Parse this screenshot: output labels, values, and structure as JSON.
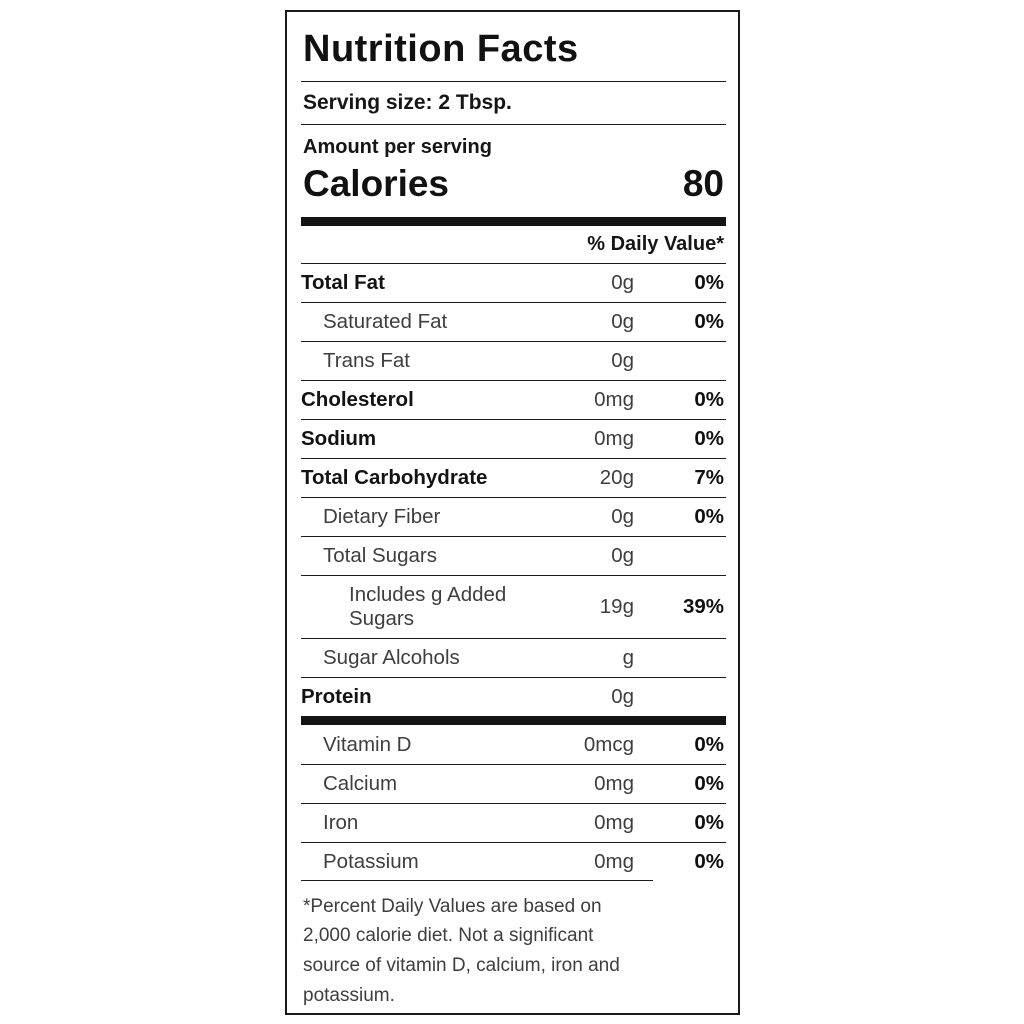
{
  "label": {
    "title": "Nutrition Facts",
    "serving_size": "Serving size: 2 Tbsp.",
    "amount_per_serving": "Amount per serving",
    "calories_label": "Calories",
    "calories_value": "80",
    "daily_value_header": "% Daily Value*",
    "rows": [
      {
        "name": "Total Fat",
        "amount": "0g",
        "dv": "0%"
      },
      {
        "name": "Saturated Fat",
        "amount": "0g",
        "dv": "0%"
      },
      {
        "name": "Trans Fat",
        "amount": "0g",
        "dv": ""
      },
      {
        "name": "Cholesterol",
        "amount": "0mg",
        "dv": "0%"
      },
      {
        "name": "Sodium",
        "amount": "0mg",
        "dv": "0%"
      },
      {
        "name": "Total Carbohydrate",
        "amount": "20g",
        "dv": "7%"
      },
      {
        "name": "Dietary Fiber",
        "amount": "0g",
        "dv": "0%"
      },
      {
        "name": "Total Sugars",
        "amount": "0g",
        "dv": ""
      },
      {
        "name": "Includes g Added Sugars",
        "amount": "19g",
        "dv": "39%"
      },
      {
        "name": "Sugar Alcohols",
        "amount": "g",
        "dv": ""
      },
      {
        "name": "Protein",
        "amount": "0g",
        "dv": ""
      }
    ],
    "vitamins": [
      {
        "name": "Vitamin D",
        "amount": "0mcg",
        "dv": "0%"
      },
      {
        "name": "Calcium",
        "amount": "0mg",
        "dv": "0%"
      },
      {
        "name": "Iron",
        "amount": "0mg",
        "dv": "0%"
      },
      {
        "name": "Potassium",
        "amount": "0mg",
        "dv": "0%"
      }
    ],
    "footnote": "*Percent Daily Values are based on 2,000 calorie diet. Not a significant source of vitamin D, calcium, iron and potassium.",
    "colors": {
      "text": "#161616",
      "muted": "#3e3e3e",
      "rule": "#1b1b1b",
      "background": "#ffffff"
    }
  }
}
